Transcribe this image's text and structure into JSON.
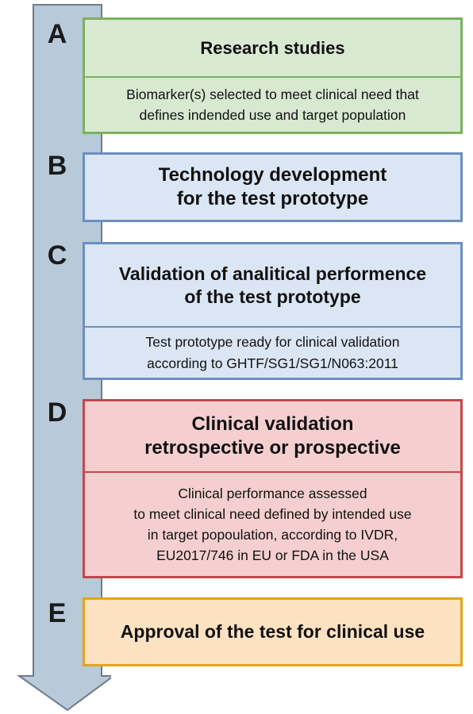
{
  "colors": {
    "arrow_fill": "#b8c9d9",
    "arrow_stroke": "#6f7c88",
    "green_fill": "#d8e9d1",
    "green_border": "#7cb15e",
    "blue_fill": "#dbe6f5",
    "blue_border": "#6b8fbf",
    "red_fill": "#f5cfcf",
    "red_border": "#c4474a",
    "orange_fill": "#fde2c2",
    "orange_border": "#e2a419"
  },
  "stages": [
    {
      "letter": "A",
      "title_lines": [
        "Research studies"
      ],
      "desc_lines": [
        "Biomarker(s) selected to meet clinical need that",
        "defines indended use and target population"
      ]
    },
    {
      "letter": "B",
      "title_lines": [
        "Technology development",
        "for the test prototype"
      ]
    },
    {
      "letter": "C",
      "title_lines": [
        "Validation of analitical performence",
        "of the test prototype"
      ],
      "desc_lines": [
        "Test prototype ready for clinical validation",
        "according to GHTF/SG1/SG1/N063:2011"
      ]
    },
    {
      "letter": "D",
      "title_lines": [
        "Clinical validation",
        "retrospective or prospective"
      ],
      "desc_lines": [
        "Clinical performance assessed",
        "to meet clinical need defined by intended use",
        "in target popoulation, according to IVDR,",
        "EU2017/746 in EU or FDA in the USA"
      ]
    },
    {
      "letter": "E",
      "title_lines": [
        "Approval of the test for clinical use"
      ]
    }
  ]
}
